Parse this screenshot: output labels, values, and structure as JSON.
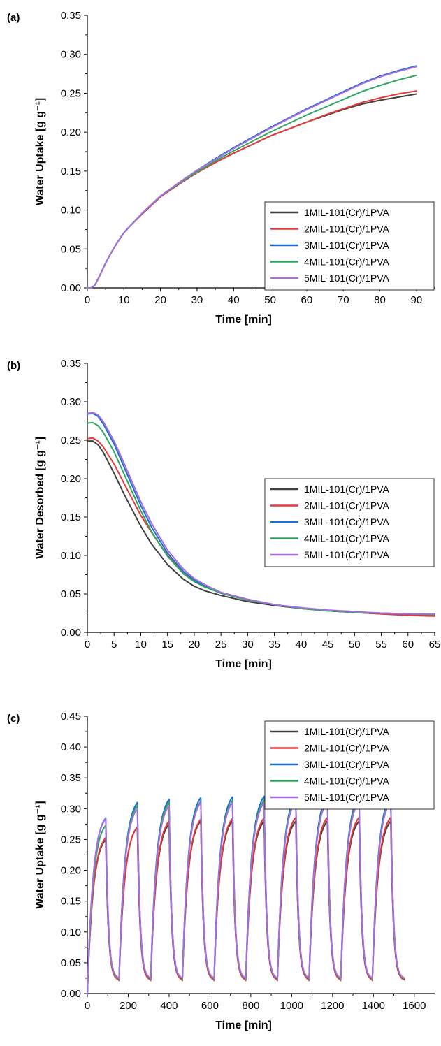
{
  "figure": {
    "panel_labels": [
      "(a)",
      "(b)",
      "(c)"
    ]
  },
  "colors": {
    "series": [
      "#404040",
      "#e8393a",
      "#1f6fd1",
      "#2ea860",
      "#a86ee0"
    ]
  },
  "chart_data": [
    {
      "type": "line",
      "panel": "(a)",
      "xlabel": "Time [min]",
      "ylabel": "Water Uptake [g g⁻¹]",
      "xlim": [
        0,
        95
      ],
      "ylim": [
        0,
        0.35
      ],
      "x_ticks": [
        0,
        10,
        20,
        30,
        40,
        50,
        60,
        70,
        80,
        90
      ],
      "y_ticks": [
        0.0,
        0.05,
        0.1,
        0.15,
        0.2,
        0.25,
        0.3,
        0.35
      ],
      "legend_position": "lower-right",
      "grid": false,
      "x": [
        0,
        1,
        2,
        3,
        4,
        5,
        6,
        8,
        10,
        12,
        15,
        20,
        25,
        30,
        35,
        40,
        45,
        50,
        55,
        60,
        65,
        70,
        75,
        80,
        85,
        90
      ],
      "series": [
        {
          "name": "1MIL-101(Cr)/1PVA",
          "values": [
            0.0,
            0.0,
            0.003,
            0.012,
            0.022,
            0.032,
            0.041,
            0.057,
            0.071,
            0.081,
            0.095,
            0.117,
            0.133,
            0.148,
            0.161,
            0.173,
            0.184,
            0.195,
            0.204,
            0.213,
            0.221,
            0.229,
            0.236,
            0.241,
            0.245,
            0.249
          ]
        },
        {
          "name": "2MIL-101(Cr)/1PVA",
          "values": [
            0.0,
            0.0,
            0.003,
            0.012,
            0.022,
            0.032,
            0.041,
            0.057,
            0.071,
            0.081,
            0.095,
            0.117,
            0.133,
            0.148,
            0.161,
            0.173,
            0.184,
            0.195,
            0.204,
            0.213,
            0.222,
            0.23,
            0.238,
            0.244,
            0.249,
            0.253
          ]
        },
        {
          "name": "3MIL-101(Cr)/1PVA",
          "values": [
            0.0,
            0.0,
            0.003,
            0.012,
            0.022,
            0.032,
            0.041,
            0.057,
            0.071,
            0.081,
            0.096,
            0.118,
            0.135,
            0.151,
            0.166,
            0.18,
            0.193,
            0.206,
            0.218,
            0.23,
            0.241,
            0.252,
            0.263,
            0.272,
            0.279,
            0.285
          ]
        },
        {
          "name": "4MIL-101(Cr)/1PVA",
          "values": [
            0.0,
            0.0,
            0.003,
            0.012,
            0.022,
            0.032,
            0.041,
            0.057,
            0.071,
            0.081,
            0.096,
            0.118,
            0.134,
            0.149,
            0.163,
            0.176,
            0.188,
            0.2,
            0.211,
            0.222,
            0.232,
            0.242,
            0.252,
            0.26,
            0.267,
            0.273
          ]
        },
        {
          "name": "5MIL-101(Cr)/1PVA",
          "values": [
            0.0,
            0.0,
            0.003,
            0.012,
            0.022,
            0.032,
            0.041,
            0.057,
            0.071,
            0.081,
            0.096,
            0.118,
            0.135,
            0.151,
            0.165,
            0.179,
            0.192,
            0.205,
            0.217,
            0.229,
            0.24,
            0.251,
            0.262,
            0.271,
            0.278,
            0.284
          ]
        }
      ]
    },
    {
      "type": "line",
      "panel": "(b)",
      "xlabel": "Time [min]",
      "ylabel": "Water Desorbed [g g⁻¹]",
      "xlim": [
        0,
        65
      ],
      "ylim": [
        0,
        0.35
      ],
      "x_ticks": [
        0,
        5,
        10,
        15,
        20,
        25,
        30,
        35,
        40,
        45,
        50,
        55,
        60,
        65
      ],
      "y_ticks": [
        0.0,
        0.05,
        0.1,
        0.15,
        0.2,
        0.25,
        0.3,
        0.35
      ],
      "legend_position": "right",
      "grid": false,
      "x": [
        0,
        1,
        2,
        3,
        5,
        7,
        10,
        12,
        15,
        18,
        20,
        22,
        25,
        30,
        35,
        40,
        45,
        50,
        55,
        60,
        65
      ],
      "series": [
        {
          "name": "1MIL-101(Cr)/1PVA",
          "values": [
            0.249,
            0.249,
            0.244,
            0.234,
            0.207,
            0.178,
            0.138,
            0.115,
            0.088,
            0.069,
            0.06,
            0.054,
            0.048,
            0.04,
            0.035,
            0.031,
            0.028,
            0.026,
            0.024,
            0.023,
            0.022
          ]
        },
        {
          "name": "2MIL-101(Cr)/1PVA",
          "values": [
            0.252,
            0.253,
            0.249,
            0.241,
            0.219,
            0.192,
            0.152,
            0.13,
            0.1,
            0.078,
            0.067,
            0.06,
            0.052,
            0.043,
            0.036,
            0.031,
            0.028,
            0.026,
            0.024,
            0.022,
            0.021
          ]
        },
        {
          "name": "3MIL-101(Cr)/1PVA",
          "values": [
            0.284,
            0.285,
            0.281,
            0.271,
            0.245,
            0.213,
            0.165,
            0.137,
            0.103,
            0.079,
            0.068,
            0.06,
            0.051,
            0.042,
            0.036,
            0.031,
            0.028,
            0.026,
            0.025,
            0.024,
            0.023
          ]
        },
        {
          "name": "4MIL-101(Cr)/1PVA",
          "values": [
            0.272,
            0.273,
            0.269,
            0.26,
            0.235,
            0.204,
            0.158,
            0.131,
            0.099,
            0.076,
            0.066,
            0.059,
            0.051,
            0.042,
            0.036,
            0.031,
            0.028,
            0.026,
            0.025,
            0.024,
            0.023
          ]
        },
        {
          "name": "5MIL-101(Cr)/1PVA",
          "values": [
            0.285,
            0.286,
            0.283,
            0.274,
            0.249,
            0.218,
            0.17,
            0.142,
            0.107,
            0.082,
            0.07,
            0.062,
            0.052,
            0.043,
            0.036,
            0.032,
            0.029,
            0.027,
            0.025,
            0.024,
            0.024
          ]
        }
      ]
    },
    {
      "type": "line",
      "panel": "(c)",
      "xlabel": "Time [min]",
      "ylabel": "Water Uptake [g g⁻¹]",
      "xlim": [
        0,
        1700
      ],
      "ylim": [
        0,
        0.45
      ],
      "x_ticks": [
        0,
        200,
        400,
        600,
        800,
        1000,
        1200,
        1400,
        1600
      ],
      "y_ticks": [
        0.0,
        0.05,
        0.1,
        0.15,
        0.2,
        0.25,
        0.3,
        0.35,
        0.4,
        0.45
      ],
      "legend_position": "top-right",
      "grid": false,
      "cycle_starts": [
        0,
        155,
        310,
        465,
        620,
        775,
        930,
        1085,
        1240,
        1395
      ],
      "cycle_adsorption_minutes": 90,
      "cycle_end": 1550,
      "series": [
        {
          "name": "1MIL-101(Cr)/1PVA",
          "cycle_peaks": [
            0.25,
            0.27,
            0.275,
            0.28,
            0.28,
            0.28,
            0.28,
            0.28,
            0.28,
            0.28
          ],
          "cycle_minimum": 0.022
        },
        {
          "name": "2MIL-101(Cr)/1PVA",
          "cycle_peaks": [
            0.253,
            0.27,
            0.28,
            0.283,
            0.284,
            0.285,
            0.286,
            0.286,
            0.286,
            0.286
          ],
          "cycle_minimum": 0.021
        },
        {
          "name": "3MIL-101(Cr)/1PVA",
          "cycle_peaks": [
            0.285,
            0.31,
            0.315,
            0.318,
            0.319,
            0.32,
            0.32,
            0.321,
            0.321,
            0.321
          ],
          "cycle_minimum": 0.023
        },
        {
          "name": "4MIL-101(Cr)/1PVA",
          "cycle_peaks": [
            0.273,
            0.305,
            0.31,
            0.312,
            0.313,
            0.314,
            0.315,
            0.315,
            0.315,
            0.315
          ],
          "cycle_minimum": 0.023
        },
        {
          "name": "5MIL-101(Cr)/1PVA",
          "cycle_peaks": [
            0.284,
            0.3,
            0.305,
            0.31,
            0.31,
            0.31,
            0.312,
            0.312,
            0.312,
            0.312
          ],
          "cycle_minimum": 0.024
        }
      ]
    }
  ]
}
